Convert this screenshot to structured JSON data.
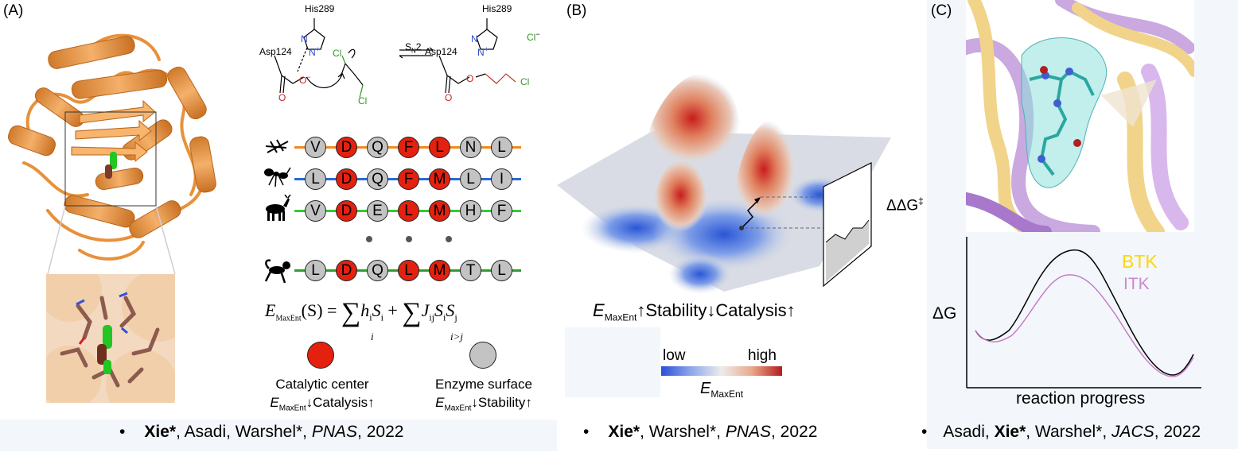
{
  "panel_a": {
    "label": "(A)",
    "residues": {
      "his": "His289",
      "asp": "Asp124",
      "his2": "His289",
      "asp2": "Asp124",
      "cl_ion": "Cl",
      "cl_minus": "−",
      "sn2": "S",
      "sn2_sub": "N",
      "sn2_num": "2",
      "cl1": "Cl",
      "cl2": "Cl",
      "cl3": "Cl",
      "o1": "O",
      "o2": "O",
      "o3": "O",
      "o4": "O",
      "o_minus": "−",
      "n1": "N",
      "nplus": "N",
      "plus": "+",
      "n3": "N",
      "nh": "N",
      "nh_h": "H",
      "plus2": "+"
    },
    "sequences": [
      {
        "organism": "insect",
        "color": "#f08a1c",
        "residues": [
          "V",
          "D",
          "Q",
          "F",
          "L",
          "N",
          "L"
        ],
        "red": [
          1,
          3,
          4
        ]
      },
      {
        "organism": "ant",
        "color": "#2a6ad6",
        "residues": [
          "L",
          "D",
          "Q",
          "F",
          "M",
          "L",
          "I"
        ],
        "red": [
          1,
          3,
          4
        ]
      },
      {
        "organism": "deer",
        "color": "#33cc33",
        "residues": [
          "V",
          "D",
          "E",
          "L",
          "M",
          "H",
          "F"
        ],
        "red": [
          1,
          3,
          4
        ]
      },
      {
        "organism": "monkey",
        "color": "#2e9e2e",
        "residues": [
          "L",
          "D",
          "Q",
          "L",
          "M",
          "T",
          "L"
        ],
        "red": [
          1,
          3,
          4
        ]
      }
    ],
    "equation": {
      "lhs": "E",
      "lhs_sub": "MaxEnt",
      "lhs_arg": "(S) =",
      "sum1_sub": "i",
      "term1": "h",
      "term1_sub": "i",
      "term1_b": "S",
      "term1_b_sub": "i",
      "plus": "+",
      "sum2_sub": "i>j",
      "term2": "J",
      "term2_sub": "ij",
      "term2_b": "S",
      "term2_b_sub": "i",
      "term2_c": "S",
      "term2_c_sub": "j"
    },
    "legend": {
      "catalytic_title": "Catalytic center",
      "catalytic_line": "↓Catalysis↑",
      "surface_title": "Enzyme surface",
      "surface_line": "↓Stability↑",
      "e": "E",
      "e_sub": "MaxEnt"
    }
  },
  "panel_b": {
    "label": "(B)",
    "ddg": "ΔΔG",
    "ddg_sup": "‡",
    "caption_e": "E",
    "caption_sub": "MaxEnt",
    "caption_rest": "↑Stability↓Catalysis↑",
    "colorbar_low": "low",
    "colorbar_high": "high",
    "colorbar_e": "E",
    "colorbar_sub": "MaxEnt"
  },
  "panel_c": {
    "label": "(C)",
    "ylabel": "ΔG",
    "xlabel": "reaction progress",
    "legend_btk": "BTK",
    "legend_itk": "ITK",
    "btk_color": "#ffd700",
    "itk_color": "#cc88cc"
  },
  "refs": {
    "a": {
      "bullet": "•",
      "bold": "Xie*",
      "rest": ", Asadi, Warshel*, ",
      "journal": "PNAS",
      "year": ", 2022"
    },
    "b": {
      "bullet": "•",
      "bold": "Xie*",
      "rest": ", Warshel*, ",
      "journal": "PNAS",
      "year": ", 2022"
    },
    "c": {
      "bullet": "•",
      "pre": "Asadi, ",
      "bold": "Xie*",
      "rest": ", Warshel*, ",
      "journal": "JACS",
      "year": ", 2022"
    }
  }
}
